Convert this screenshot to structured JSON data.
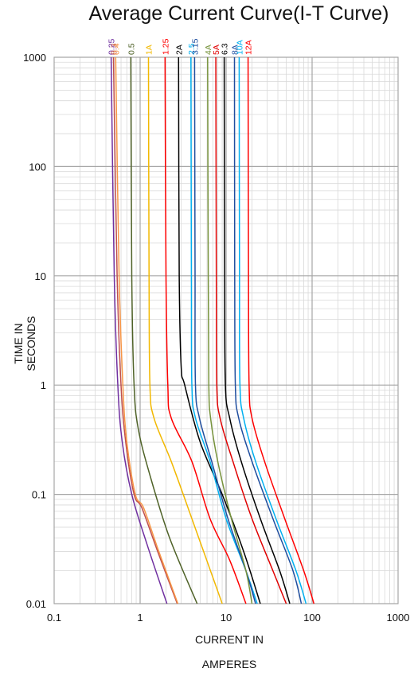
{
  "chart_data": {
    "type": "line",
    "title": "Average Current Curve(I-T Curve)",
    "xlabel_lines": [
      "CURRENT IN",
      "AMPERES"
    ],
    "ylabel_lines": [
      "TIME IN",
      "SECONDS"
    ],
    "x_scale": "log",
    "y_scale": "log",
    "xlim": [
      0.1,
      1000
    ],
    "ylim": [
      0.01,
      1000
    ],
    "x_ticks": [
      0.1,
      1,
      10,
      100,
      1000
    ],
    "x_tick_labels": [
      "0.1",
      "1",
      "10",
      "100",
      "1000"
    ],
    "y_ticks": [
      0.01,
      0.1,
      1,
      10,
      100,
      1000
    ],
    "y_tick_labels": [
      "0.01",
      "0.1",
      "1",
      "10",
      "100",
      "1000"
    ],
    "grid": true,
    "legend": "labels at top of each curve",
    "series": [
      {
        "name": "0.25",
        "color": "#7030a0",
        "points": [
          [
            0.46,
            1000
          ],
          [
            0.5,
            10
          ],
          [
            0.55,
            1
          ],
          [
            0.62,
            0.3
          ],
          [
            0.8,
            0.1
          ],
          [
            1.2,
            0.035
          ],
          [
            2.05,
            0.01
          ]
        ]
      },
      {
        "name": "0.3",
        "color": "#c0504d",
        "points": [
          [
            0.49,
            1000
          ],
          [
            0.54,
            10
          ],
          [
            0.6,
            1
          ],
          [
            0.68,
            0.3
          ],
          [
            0.85,
            0.1
          ],
          [
            1.05,
            0.075
          ],
          [
            1.6,
            0.03
          ],
          [
            2.7,
            0.01
          ]
        ]
      },
      {
        "name": "0.4",
        "color": "#f79646",
        "points": [
          [
            0.52,
            1000
          ],
          [
            0.57,
            10
          ],
          [
            0.63,
            1
          ],
          [
            0.7,
            0.3
          ],
          [
            0.88,
            0.1
          ],
          [
            1.1,
            0.075
          ],
          [
            1.65,
            0.03
          ],
          [
            2.75,
            0.01
          ]
        ]
      },
      {
        "name": "0.5",
        "color": "#4f6228",
        "points": [
          [
            0.78,
            1000
          ],
          [
            0.8,
            10
          ],
          [
            0.85,
            1
          ],
          [
            0.95,
            0.4
          ],
          [
            1.3,
            0.15
          ],
          [
            2.2,
            0.04
          ],
          [
            4.6,
            0.01
          ]
        ]
      },
      {
        "name": "1A",
        "color": "#f2b800",
        "points": [
          [
            1.25,
            1000
          ],
          [
            1.27,
            10
          ],
          [
            1.3,
            1
          ],
          [
            1.45,
            0.5
          ],
          [
            2.3,
            0.2
          ],
          [
            4.0,
            0.06
          ],
          [
            9.0,
            0.01
          ]
        ]
      },
      {
        "name": "1.25",
        "color": "#ff0000",
        "points": [
          [
            1.95,
            1000
          ],
          [
            2.0,
            10
          ],
          [
            2.1,
            1
          ],
          [
            2.3,
            0.5
          ],
          [
            4.0,
            0.2
          ],
          [
            6.5,
            0.06
          ],
          [
            11.0,
            0.025
          ],
          [
            17.0,
            0.01
          ]
        ]
      },
      {
        "name": "2A",
        "color": "#000000",
        "points": [
          [
            2.8,
            1000
          ],
          [
            2.85,
            10
          ],
          [
            3.0,
            1.5
          ],
          [
            3.3,
            1
          ],
          [
            5.0,
            0.3
          ],
          [
            9.0,
            0.1
          ],
          [
            16.0,
            0.03
          ],
          [
            25.0,
            0.01
          ]
        ]
      },
      {
        "name": "2.5",
        "color": "#00b0f0",
        "points": [
          [
            3.9,
            1000
          ],
          [
            3.95,
            10
          ],
          [
            4.0,
            1
          ],
          [
            4.4,
            0.5
          ],
          [
            6.5,
            0.2
          ],
          [
            10.0,
            0.06
          ],
          [
            17.0,
            0.02
          ],
          [
            23.0,
            0.01
          ]
        ]
      },
      {
        "name": "3.15",
        "color": "#1f4e9f",
        "points": [
          [
            4.3,
            1000
          ],
          [
            4.35,
            10
          ],
          [
            4.4,
            1
          ],
          [
            4.9,
            0.5
          ],
          [
            6.8,
            0.2
          ],
          [
            10.5,
            0.06
          ],
          [
            17.0,
            0.02
          ],
          [
            22.0,
            0.01
          ]
        ]
      },
      {
        "name": "4A",
        "color": "#77933c",
        "points": [
          [
            6.1,
            1000
          ],
          [
            6.2,
            10
          ],
          [
            6.3,
            1
          ],
          [
            6.6,
            0.5
          ],
          [
            8.0,
            0.2
          ],
          [
            11.5,
            0.06
          ],
          [
            17.0,
            0.02
          ],
          [
            20.0,
            0.01
          ]
        ]
      },
      {
        "name": "5A",
        "color": "#e00000",
        "points": [
          [
            7.6,
            1000
          ],
          [
            7.7,
            10
          ],
          [
            7.8,
            1
          ],
          [
            8.5,
            0.5
          ],
          [
            12.0,
            0.2
          ],
          [
            20.0,
            0.06
          ],
          [
            35.0,
            0.02
          ],
          [
            50.0,
            0.01
          ]
        ]
      },
      {
        "name": "6.3",
        "color": "#000000",
        "points": [
          [
            9.5,
            1000
          ],
          [
            9.6,
            10
          ],
          [
            9.8,
            1
          ],
          [
            11.0,
            0.5
          ],
          [
            15.0,
            0.2
          ],
          [
            25.0,
            0.06
          ],
          [
            42.0,
            0.02
          ],
          [
            55.0,
            0.01
          ]
        ]
      },
      {
        "name": "8A",
        "color": "#1f4e9f",
        "points": [
          [
            12.5,
            1000
          ],
          [
            12.6,
            10
          ],
          [
            12.8,
            1
          ],
          [
            14.0,
            0.5
          ],
          [
            20.0,
            0.2
          ],
          [
            35.0,
            0.06
          ],
          [
            60.0,
            0.02
          ],
          [
            75.0,
            0.01
          ]
        ]
      },
      {
        "name": "10A",
        "color": "#00b0f0",
        "points": [
          [
            14.2,
            1000
          ],
          [
            14.3,
            10
          ],
          [
            14.5,
            1
          ],
          [
            16.0,
            0.5
          ],
          [
            22.0,
            0.2
          ],
          [
            38.0,
            0.06
          ],
          [
            65.0,
            0.02
          ],
          [
            85.0,
            0.01
          ]
        ]
      },
      {
        "name": "12A",
        "color": "#ff0000",
        "points": [
          [
            18.0,
            1000
          ],
          [
            18.2,
            10
          ],
          [
            18.5,
            1
          ],
          [
            20.0,
            0.5
          ],
          [
            28.0,
            0.2
          ],
          [
            48.0,
            0.06
          ],
          [
            80.0,
            0.02
          ],
          [
            105.0,
            0.01
          ]
        ]
      }
    ]
  }
}
